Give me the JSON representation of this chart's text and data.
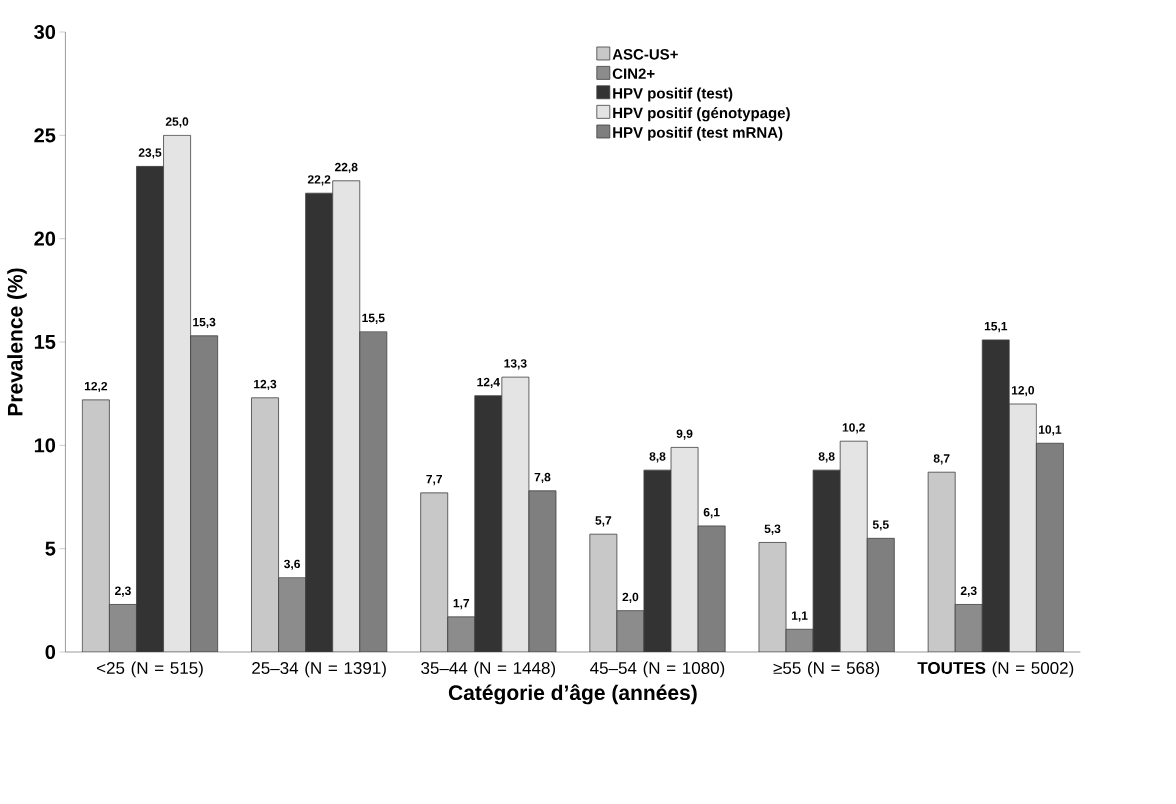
{
  "chart_data": {
    "type": "bar",
    "xlabel": "Catégorie d’âge (années)",
    "ylabel": "Prevalence (%)",
    "categories": [
      "<25 (N = 515)",
      "25–34 (N = 1391)",
      "35–44 (N = 1448)",
      "45–54 (N = 1080)",
      "≥55 (N = 568)",
      "**TOUTES** (N = 5002)"
    ],
    "series": [
      {
        "name": "ASC-US+",
        "color": "#c8c8c8",
        "values": [
          12.2,
          12.3,
          7.7,
          5.7,
          5.3,
          8.7
        ],
        "value_labels": [
          "12,2",
          "12,3",
          "7,7",
          "5,7",
          "5,3",
          "8,7"
        ]
      },
      {
        "name": "CIN2+",
        "color": "#8c8c8c",
        "values": [
          2.3,
          3.6,
          1.7,
          2.0,
          1.1,
          2.3
        ],
        "value_labels": [
          "2,3",
          "3,6",
          "1,7",
          "2,0",
          "1,1",
          "2,3"
        ]
      },
      {
        "name": "HPV positif (test)",
        "color": "#333333",
        "values": [
          23.5,
          22.2,
          12.4,
          8.8,
          8.8,
          15.1
        ],
        "value_labels": [
          "23,5",
          "22,2",
          "12,4",
          "8,8",
          "8,8",
          "15,1"
        ]
      },
      {
        "name": "HPV positif (génotypage)",
        "color": "#e4e4e4",
        "values": [
          25.0,
          22.8,
          13.3,
          9.9,
          10.2,
          12.0
        ],
        "value_labels": [
          "25,0",
          "22,8",
          "13,3",
          "9,9",
          "10,2",
          "12,0"
        ]
      },
      {
        "name": "HPV positif (test mRNA)",
        "color": "#7f7f7f",
        "values": [
          15.3,
          15.5,
          7.8,
          6.1,
          5.5,
          10.1
        ],
        "value_labels": [
          "15,3",
          "15,5",
          "7,8",
          "6,1",
          "5,5",
          "10,1"
        ]
      }
    ],
    "ylim": [
      0,
      30
    ],
    "yticks": [
      0,
      5,
      10,
      15,
      20,
      25,
      30
    ],
    "grid": false,
    "legend": "top right"
  }
}
